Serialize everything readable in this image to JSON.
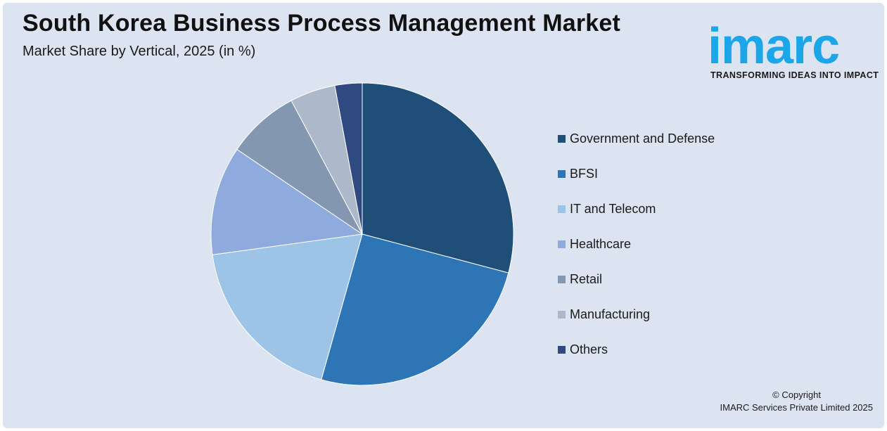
{
  "header": {
    "title": "South Korea Business Process Management Market",
    "subtitle": "Market Share by Vertical, 2025 (in %)"
  },
  "logo": {
    "wordmark": "imarc",
    "tagline": "TRANSFORMING IDEAS INTO IMPACT",
    "color": "#1aa6e8"
  },
  "chart_data": {
    "type": "pie",
    "title": "South Korea Business Process Management Market",
    "subtitle": "Market Share by Vertical, 2025 (in %)",
    "legend_position": "right",
    "start_angle_deg": 0,
    "direction": "clockwise",
    "slices": [
      {
        "label": "Government and Defense",
        "value": 30,
        "color": "#1f4e79"
      },
      {
        "label": "BFSI",
        "value": 26,
        "color": "#2e75b6"
      },
      {
        "label": "IT and Telecom",
        "value": 19,
        "color": "#9dc3e6"
      },
      {
        "label": "Healthcare",
        "value": 12,
        "color": "#8faadc"
      },
      {
        "label": "Retail",
        "value": 8,
        "color": "#8497b0"
      },
      {
        "label": "Manufacturing",
        "value": 5,
        "color": "#adb9ca"
      },
      {
        "label": "Others",
        "value": 3,
        "color": "#2f4a80"
      }
    ]
  },
  "footer": {
    "copyright_line1": "© Copyright",
    "copyright_line2": "IMARC Services Private Limited 2025"
  }
}
